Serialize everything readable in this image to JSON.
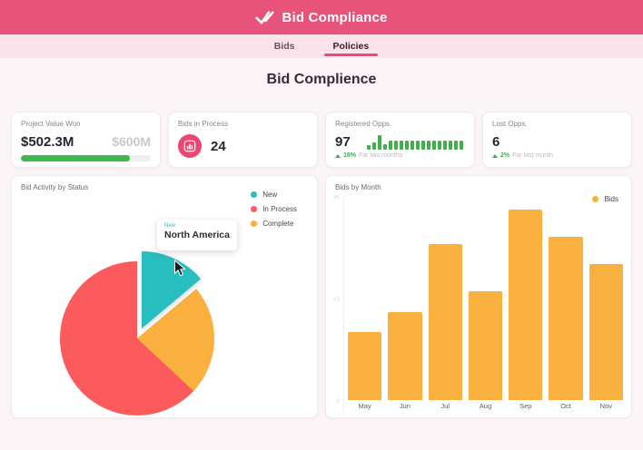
{
  "header": {
    "title": "Bid Compliance",
    "icon": "double-check"
  },
  "tabs": [
    {
      "label": "Bids",
      "active": false
    },
    {
      "label": "Policies",
      "active": true
    }
  ],
  "page_title": "Bid Complience",
  "stats": [
    {
      "label": "Project Value Won",
      "value": "$502.3M",
      "target": "$600M",
      "progress_pct": 84
    },
    {
      "label": "Bids in Process",
      "value": "24",
      "icon": "bar-chart"
    },
    {
      "label": "Registered Opps.",
      "value": "97",
      "change": "16%",
      "change_note": "For two months",
      "spark": [
        4,
        7,
        13,
        5,
        8,
        8,
        8,
        8,
        8,
        8,
        8,
        8,
        8,
        8,
        8,
        8,
        8,
        8
      ]
    },
    {
      "label": "Lost Opps.",
      "value": "6",
      "change": "2%",
      "change_note": "For last month"
    }
  ],
  "tooltip": {
    "series": "New",
    "label": "North America"
  },
  "colors": {
    "header_bg": "#E8537B",
    "tabbar_bg": "#FBE2EB",
    "accent_pink": "#EE4679",
    "progress_green": "#3EB94E",
    "spark_green": "#43AE4C",
    "pie_teal": "#28BDBF",
    "pie_red": "#FB5B5C",
    "pie_yellow": "#F9B03E"
  },
  "chart_data": [
    {
      "type": "pie",
      "title": "Bid Activity by Status",
      "legend_position": "top-right",
      "slices": [
        {
          "name": "New",
          "color": "#28BDBF",
          "pct": 14,
          "start_deg": 0,
          "end_deg": 50,
          "exploded": true
        },
        {
          "name": "Complete",
          "color": "#F9B03E",
          "pct": 23,
          "start_deg": 50,
          "end_deg": 133,
          "exploded": false
        },
        {
          "name": "In Process",
          "color": "#FB5B5C",
          "pct": 63,
          "start_deg": 133,
          "end_deg": 360,
          "exploded": false
        }
      ],
      "legend": [
        {
          "label": "New",
          "color": "#28BDBF"
        },
        {
          "label": "In Process",
          "color": "#FB5B5C"
        },
        {
          "label": "Complete",
          "color": "#F9B03E"
        }
      ],
      "hovered_slice": "New"
    },
    {
      "type": "bar",
      "title": "Bids by Month",
      "categories": [
        "May",
        "Jun",
        "Jul",
        "Aug",
        "Sep",
        "Oct",
        "Nov"
      ],
      "values": [
        10,
        13,
        23,
        16,
        28,
        24,
        20
      ],
      "series_name": "Bids",
      "bar_color": "#F9B03E",
      "ylim": [
        0,
        30
      ],
      "yticks": [
        "30",
        "15",
        "0"
      ],
      "legend_position": "top-right",
      "grid": false
    }
  ]
}
